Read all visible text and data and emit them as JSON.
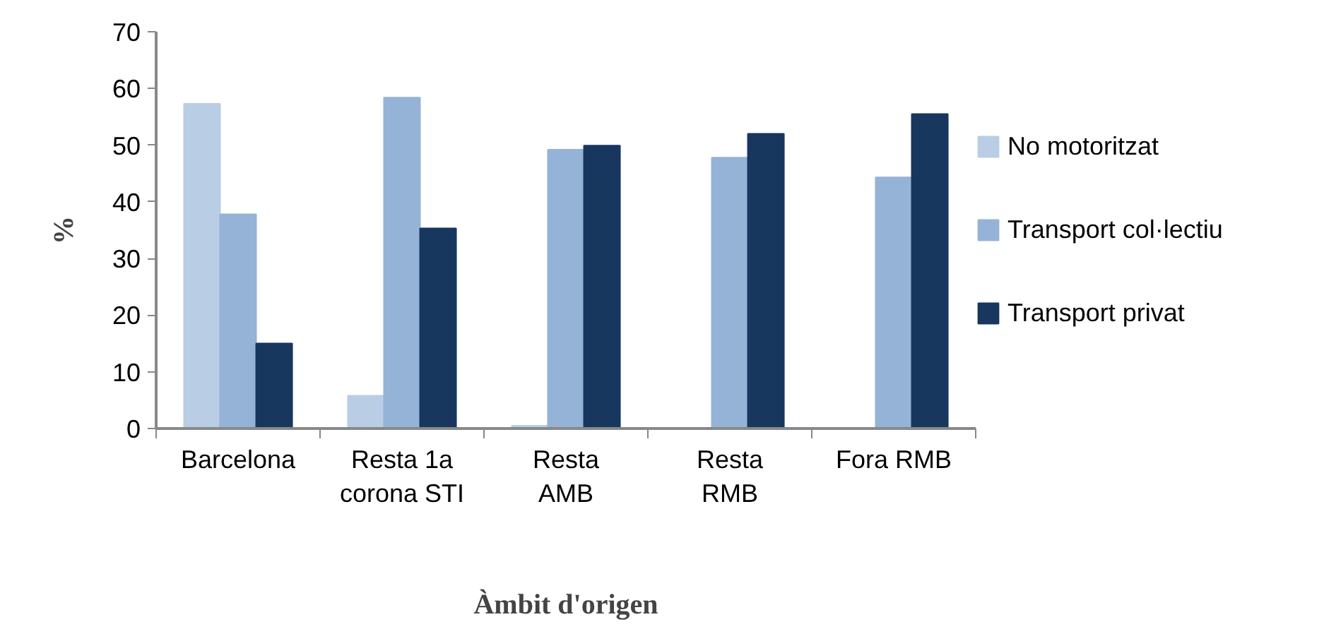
{
  "chart_data": {
    "type": "bar",
    "xlabel": "Àmbit d'origen",
    "ylabel": "%",
    "categories": [
      "Barcelona",
      "Resta 1a\ncorona STI",
      "Resta\nAMB",
      "Resta\nRMB",
      "Fora RMB"
    ],
    "series": [
      {
        "name": "No motoritzat",
        "color": "#b9cde5",
        "values": [
          57.3,
          5.8,
          0.5,
          0,
          0
        ]
      },
      {
        "name": "Transport col·lectiu",
        "color": "#95b3d7",
        "values": [
          37.8,
          58.4,
          49.2,
          47.8,
          44.3
        ]
      },
      {
        "name": "Transport privat",
        "color": "#17375e",
        "values": [
          15,
          35.3,
          49.9,
          52,
          55.5
        ]
      }
    ],
    "ylim": [
      0,
      70
    ],
    "yticks": [
      0,
      10,
      20,
      30,
      40,
      50,
      60,
      70
    ],
    "grid": false,
    "legend": "right"
  }
}
